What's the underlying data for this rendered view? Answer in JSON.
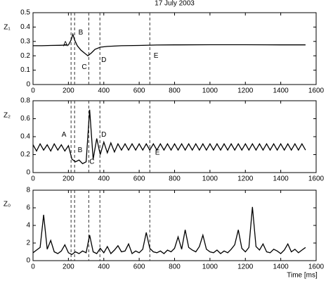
{
  "chart_data": [
    {
      "type": "line",
      "title": "17 July 2003",
      "ylabel": "Z₁",
      "x": [
        0,
        50,
        100,
        150,
        200,
        215,
        225,
        235,
        250,
        270,
        290,
        310,
        330,
        350,
        380,
        420,
        500,
        600,
        700,
        800,
        1000,
        1200,
        1400,
        1540
      ],
      "values": [
        0.27,
        0.27,
        0.272,
        0.273,
        0.275,
        0.31,
        0.35,
        0.31,
        0.27,
        0.24,
        0.22,
        0.2,
        0.22,
        0.245,
        0.26,
        0.265,
        0.27,
        0.272,
        0.275,
        0.276,
        0.277,
        0.277,
        0.276,
        0.276
      ],
      "color": "#000000",
      "xlim": [
        0,
        1600
      ],
      "xticks": [
        0,
        200,
        400,
        600,
        800,
        1000,
        1200,
        1400,
        1600
      ],
      "ylim": [
        0,
        0.5
      ],
      "yticks": [
        0,
        0.1,
        0.2,
        0.3,
        0.4,
        0.5
      ],
      "vlines": [
        215,
        235,
        315,
        378,
        660
      ],
      "annotations": [
        {
          "text": "A",
          "x": 183,
          "y": 0.28
        },
        {
          "text": "B",
          "x": 270,
          "y": 0.36
        },
        {
          "text": "C",
          "x": 290,
          "y": 0.12
        },
        {
          "text": "D",
          "x": 400,
          "y": 0.17
        },
        {
          "text": "E",
          "x": 695,
          "y": 0.2
        }
      ]
    },
    {
      "type": "line",
      "ylabel": "Z₂",
      "x": [
        0,
        20,
        40,
        60,
        80,
        100,
        120,
        140,
        160,
        180,
        200,
        220,
        240,
        260,
        280,
        300,
        320,
        340,
        360,
        380,
        400,
        420,
        440,
        460,
        480,
        500,
        520,
        540,
        560,
        580,
        600,
        620,
        640,
        660,
        680,
        700,
        720,
        740,
        760,
        780,
        800,
        820,
        840,
        860,
        880,
        900,
        920,
        940,
        960,
        980,
        1000,
        1020,
        1040,
        1060,
        1080,
        1100,
        1120,
        1140,
        1160,
        1180,
        1200,
        1220,
        1240,
        1260,
        1280,
        1300,
        1320,
        1340,
        1360,
        1380,
        1400,
        1420,
        1440,
        1460,
        1480,
        1500,
        1520,
        1540
      ],
      "values": [
        0.31,
        0.24,
        0.32,
        0.25,
        0.31,
        0.24,
        0.32,
        0.25,
        0.31,
        0.24,
        0.3,
        0.15,
        0.12,
        0.14,
        0.1,
        0.12,
        0.7,
        0.15,
        0.38,
        0.2,
        0.34,
        0.22,
        0.33,
        0.23,
        0.32,
        0.25,
        0.32,
        0.25,
        0.32,
        0.25,
        0.32,
        0.25,
        0.32,
        0.25,
        0.32,
        0.25,
        0.32,
        0.25,
        0.32,
        0.25,
        0.32,
        0.25,
        0.32,
        0.25,
        0.32,
        0.25,
        0.32,
        0.25,
        0.32,
        0.25,
        0.32,
        0.25,
        0.32,
        0.25,
        0.32,
        0.25,
        0.32,
        0.25,
        0.32,
        0.25,
        0.32,
        0.25,
        0.32,
        0.25,
        0.32,
        0.25,
        0.32,
        0.25,
        0.32,
        0.25,
        0.32,
        0.25,
        0.32,
        0.25,
        0.32,
        0.25,
        0.32,
        0.25
      ],
      "color": "#000000",
      "xlim": [
        0,
        1600
      ],
      "xticks": [
        0,
        200,
        400,
        600,
        800,
        1000,
        1200,
        1400,
        1600
      ],
      "ylim": [
        0,
        0.8
      ],
      "yticks": [
        0,
        0.2,
        0.4,
        0.6,
        0.8
      ],
      "vlines": [
        215,
        235,
        315,
        378,
        660
      ],
      "annotations": [
        {
          "text": "A",
          "x": 175,
          "y": 0.42
        },
        {
          "text": "B",
          "x": 266,
          "y": 0.25
        },
        {
          "text": "C",
          "x": 333,
          "y": 0.12
        },
        {
          "text": "D",
          "x": 400,
          "y": 0.42
        },
        {
          "text": "E",
          "x": 703,
          "y": 0.22
        }
      ]
    },
    {
      "type": "line",
      "ylabel": "Z₀",
      "xlabel": "Time [ms]",
      "x": [
        0,
        20,
        40,
        60,
        80,
        100,
        120,
        140,
        160,
        180,
        200,
        220,
        240,
        260,
        280,
        300,
        320,
        340,
        360,
        380,
        400,
        420,
        440,
        460,
        480,
        500,
        520,
        540,
        560,
        580,
        600,
        620,
        640,
        660,
        680,
        700,
        720,
        740,
        760,
        780,
        800,
        820,
        840,
        860,
        880,
        900,
        920,
        940,
        960,
        980,
        1000,
        1020,
        1040,
        1060,
        1080,
        1100,
        1120,
        1140,
        1160,
        1180,
        1200,
        1220,
        1240,
        1260,
        1280,
        1300,
        1320,
        1340,
        1360,
        1380,
        1400,
        1420,
        1440,
        1460,
        1480,
        1500,
        1520,
        1540
      ],
      "values": [
        0.9,
        1.2,
        1.5,
        5.2,
        1.3,
        2.3,
        1.0,
        0.8,
        1.1,
        1.8,
        0.9,
        0.7,
        1.0,
        0.8,
        1.1,
        0.9,
        2.9,
        1.0,
        0.8,
        1.4,
        0.9,
        1.6,
        0.8,
        1.2,
        1.7,
        1.0,
        1.1,
        1.9,
        0.8,
        1.1,
        0.9,
        1.3,
        3.2,
        1.4,
        1.0,
        0.9,
        1.1,
        0.8,
        1.2,
        1.0,
        1.4,
        2.7,
        1.3,
        3.5,
        1.5,
        1.2,
        1.0,
        1.6,
        2.9,
        1.3,
        1.0,
        0.9,
        1.2,
        0.8,
        1.1,
        0.9,
        1.3,
        1.8,
        3.5,
        1.4,
        1.0,
        1.5,
        6.1,
        1.6,
        1.2,
        1.9,
        1.0,
        0.9,
        1.3,
        1.1,
        0.8,
        1.2,
        1.9,
        1.0,
        1.3,
        0.9,
        1.2,
        1.5
      ],
      "color": "#000000",
      "xlim": [
        0,
        1600
      ],
      "xticks": [
        0,
        200,
        400,
        600,
        800,
        1000,
        1200,
        1400,
        1600
      ],
      "ylim": [
        0,
        8
      ],
      "yticks": [
        0,
        2,
        4,
        6,
        8
      ],
      "vlines": [
        215,
        235,
        315,
        378,
        660
      ]
    }
  ]
}
